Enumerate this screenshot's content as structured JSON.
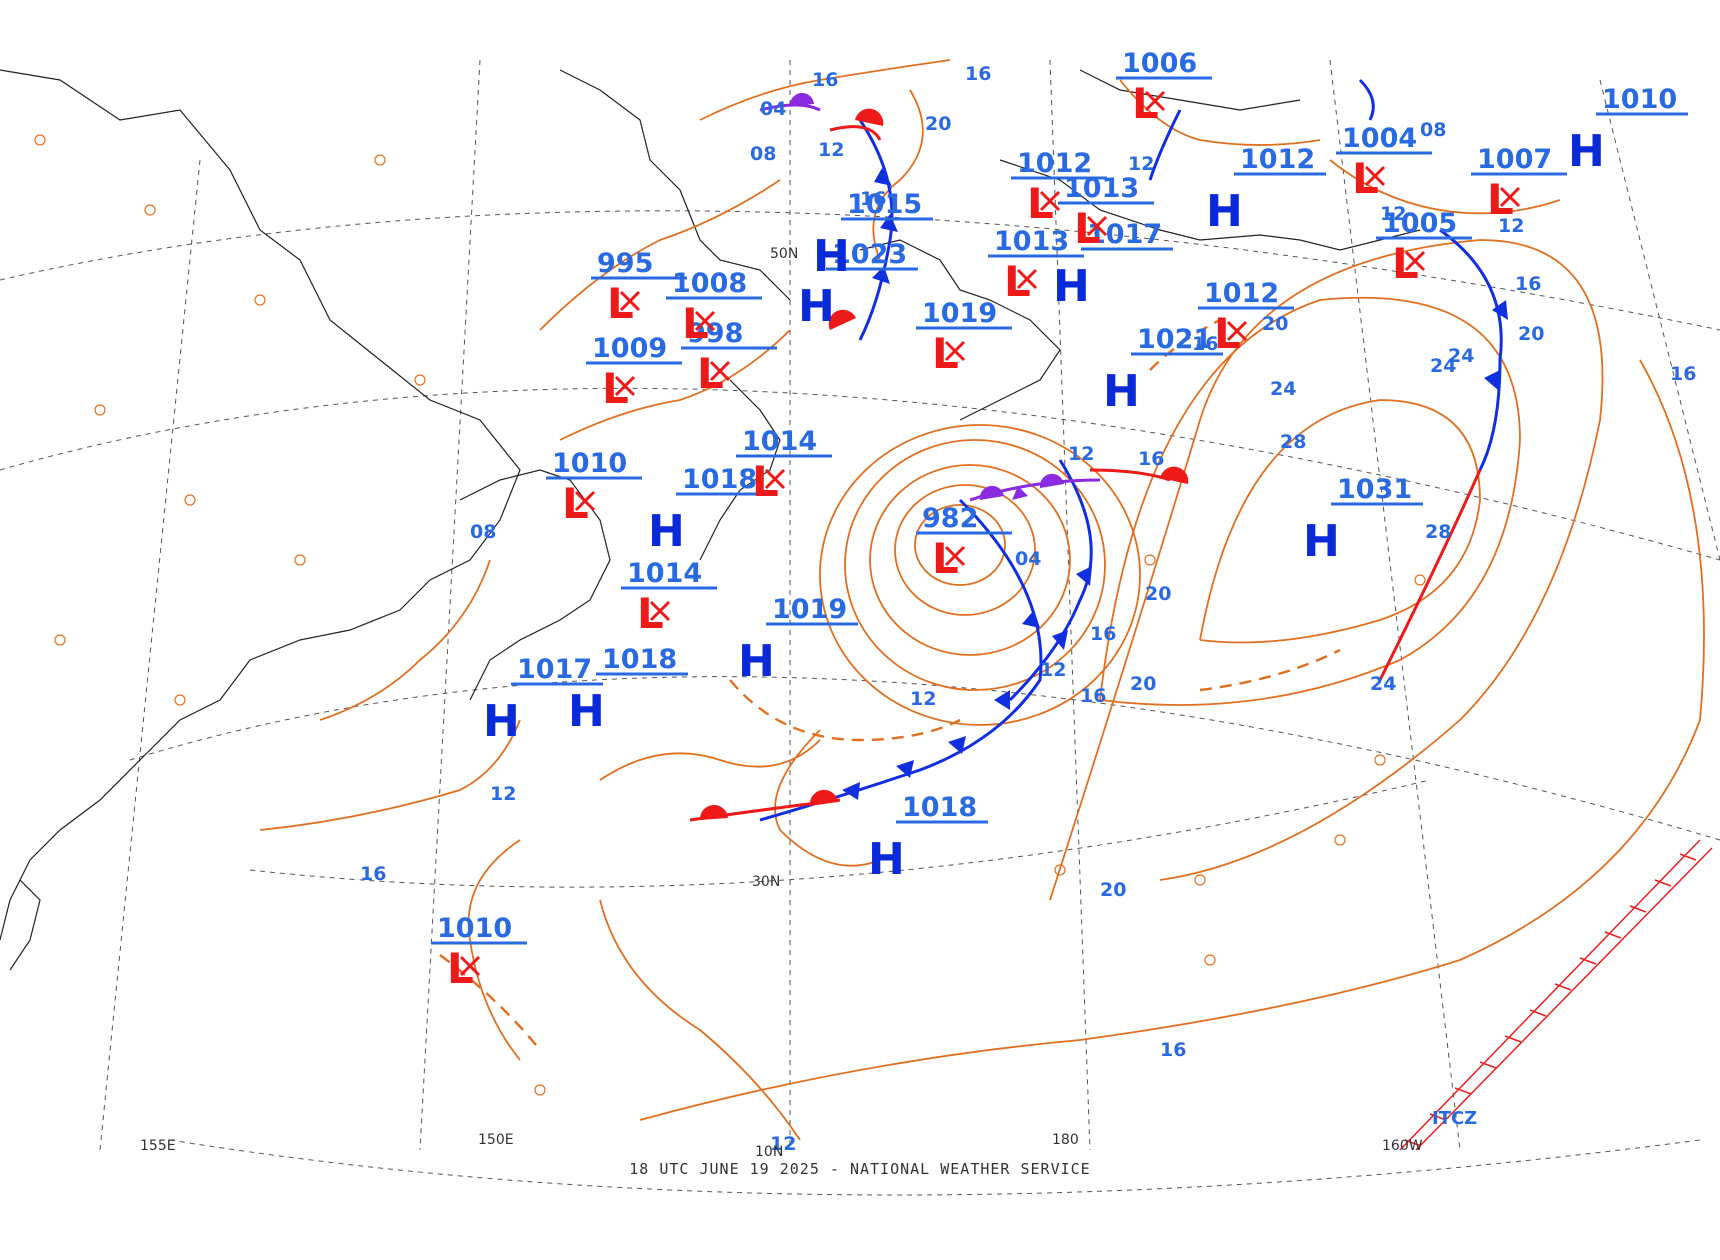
{
  "footer": {
    "timestamp": "18 UTC JUNE 19 2025",
    "separator": " - ",
    "source": "NATIONAL WEATHER SERVICE"
  },
  "colors": {
    "isobar": "#e07020",
    "high": "#0a2ad8",
    "low": "#ee1a1a",
    "cold_front": "#1030e0",
    "warm_front": "#ee1a1a",
    "occluded": "#8a2be2",
    "pressure_label": "#2a6ae0",
    "graticule": "#555555",
    "coast": "#222222",
    "itcz": "#e82020"
  },
  "grid_labels": [
    "150E",
    "180",
    "160W",
    "30N",
    "10N",
    "50N",
    "155E"
  ],
  "itcz_label": "ITCZ",
  "highs": [
    {
      "letter": "H",
      "value": "1023"
    },
    {
      "letter": "H",
      "value": "1015"
    },
    {
      "letter": "H",
      "value": "1017"
    },
    {
      "letter": "H",
      "value": "1021"
    },
    {
      "letter": "H",
      "value": "1012"
    },
    {
      "letter": "H",
      "value": "1018"
    },
    {
      "letter": "H",
      "value": "1031"
    },
    {
      "letter": "H",
      "value": "1018"
    },
    {
      "letter": "H",
      "value": "1019"
    },
    {
      "letter": "H",
      "value": "1017"
    },
    {
      "letter": "H",
      "value": "1018"
    },
    {
      "letter": "H",
      "value": "1010"
    }
  ],
  "lows": [
    {
      "letter": "L",
      "value": "982"
    },
    {
      "letter": "L",
      "value": "1010"
    },
    {
      "letter": "L",
      "value": "1009"
    },
    {
      "letter": "L",
      "value": "998"
    },
    {
      "letter": "L",
      "value": "995"
    },
    {
      "letter": "L",
      "value": "1008"
    },
    {
      "letter": "L",
      "value": "1014"
    },
    {
      "letter": "L",
      "value": "1012"
    },
    {
      "letter": "L",
      "value": "1013"
    },
    {
      "letter": "L",
      "value": "1012"
    },
    {
      "letter": "L",
      "value": "1006"
    },
    {
      "letter": "L",
      "value": "1004"
    },
    {
      "letter": "L",
      "value": "1005"
    },
    {
      "letter": "L",
      "value": "1007"
    },
    {
      "letter": "L",
      "value": "1010"
    },
    {
      "letter": "L",
      "value": "1014"
    },
    {
      "letter": "L",
      "value": "1019"
    },
    {
      "letter": "L",
      "value": "1013"
    }
  ],
  "isobar_labels": [
    "12",
    "16",
    "20",
    "24",
    "28",
    "08",
    "04",
    "16",
    "12",
    "20",
    "24",
    "28",
    "12",
    "16",
    "20",
    "16",
    "12",
    "08",
    "16",
    "12",
    "16",
    "20",
    "12",
    "16",
    "24",
    "20",
    "16",
    "24",
    "12",
    "16",
    "12",
    "08",
    "04",
    "16",
    "12",
    "16",
    "20"
  ]
}
